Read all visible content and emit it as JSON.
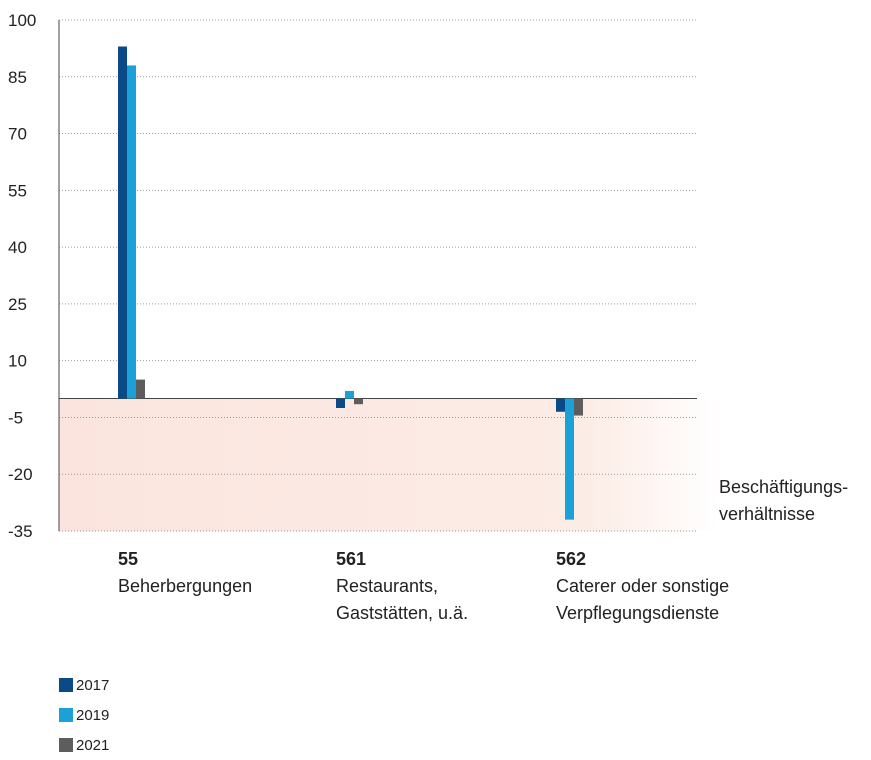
{
  "chart_data": {
    "type": "bar",
    "title": "",
    "ylim": [
      -35,
      100
    ],
    "yticks": [
      100,
      85,
      70,
      55,
      40,
      25,
      10,
      -5,
      -20,
      -35
    ],
    "y_tick_labels": [
      "100",
      "85",
      "70",
      "55",
      "40",
      "25",
      "10",
      "-5",
      "-20",
      "-35"
    ],
    "negative_zone_shaded": true,
    "grid": "dotted horizontal",
    "side_label": "Beschäftigungs-\nverhältnisse",
    "categories": [
      {
        "code": "55",
        "name": "Beherbergungen"
      },
      {
        "code": "561",
        "name": "Restaurants,\nGaststätten, u.ä."
      },
      {
        "code": "562",
        "name": "Caterer oder sonstige\nVerpflegungsdienste"
      }
    ],
    "series": [
      {
        "name": "2017",
        "color": "#0a4a86",
        "values": [
          93,
          -2.5,
          -3.5
        ]
      },
      {
        "name": "2019",
        "color": "#1ba0d8",
        "values": [
          88,
          2,
          -32
        ]
      },
      {
        "name": "2021",
        "color": "#5d5d5d",
        "values": [
          5,
          -1.5,
          -4.5
        ]
      }
    ],
    "legend_position": "bottom-left"
  }
}
